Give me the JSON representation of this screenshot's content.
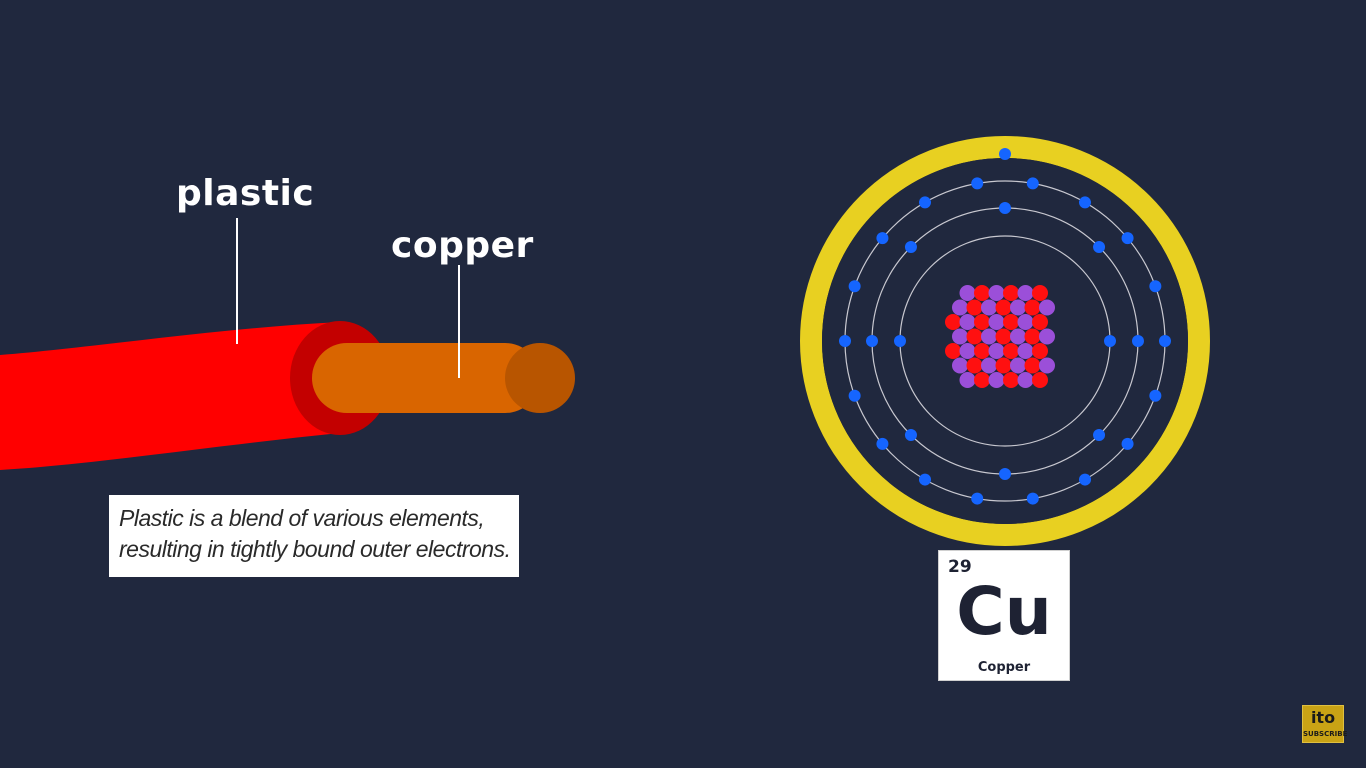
{
  "labels": {
    "plastic": "plastic",
    "copper": "copper"
  },
  "caption": {
    "line1": "Plastic is a blend of various elements,",
    "line2": "resulting in tightly bound outer electrons."
  },
  "element": {
    "number": "29",
    "symbol": "Cu",
    "name": "Copper"
  },
  "channel_badge": {
    "logo": "ito",
    "action": "SUBSCRIBE"
  },
  "atom": {
    "shell_electron_counts": [
      2,
      8,
      18,
      1
    ]
  },
  "colors": {
    "background": "#20283e",
    "plastic": "#ff0000",
    "plastic_end": "#c00000",
    "copper": "#d96500",
    "copper_end": "#b85500",
    "ring": "#e8d021",
    "electron": "#1565ff",
    "proton": "#ff1010",
    "neutron": "#9b4fd9",
    "orbit": "#c8c8d0"
  }
}
